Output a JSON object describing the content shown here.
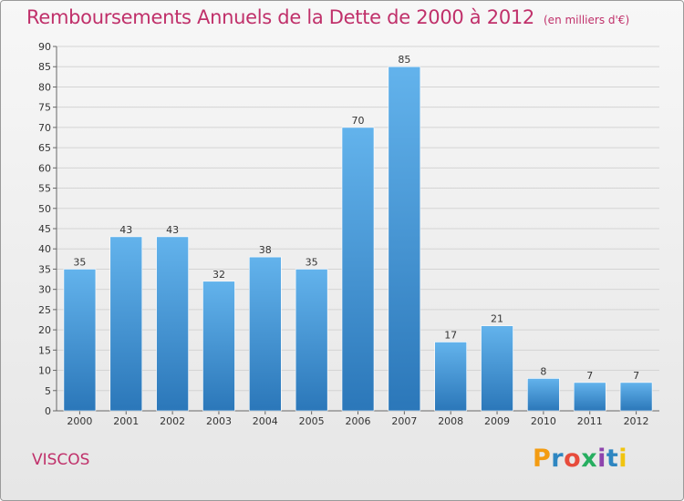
{
  "header": {
    "title": "Remboursements Annuels de la Dette de 2000 à 2012",
    "unit": "(en milliers d'€)"
  },
  "footer": {
    "place": "VISCOS",
    "brand": "Proxiti"
  },
  "colors": {
    "title": "#c0306a",
    "bar_top": "#63b3ec",
    "bar_bottom": "#2b77b9",
    "grid": "#d4d4d4",
    "brand_letters": [
      "#f39c12",
      "#2e86c1",
      "#e74c3c",
      "#27ae60",
      "#8e44ad",
      "#2e86c1",
      "#f1c40f"
    ]
  },
  "chart_data": {
    "type": "bar",
    "title": "Remboursements Annuels de la Dette de 2000 à 2012",
    "subtitle": "(en milliers d'€)",
    "xlabel": "",
    "ylabel": "",
    "categories": [
      "2000",
      "2001",
      "2002",
      "2003",
      "2004",
      "2005",
      "2006",
      "2007",
      "2008",
      "2009",
      "2010",
      "2011",
      "2012"
    ],
    "values": [
      35,
      43,
      43,
      32,
      38,
      35,
      70,
      85,
      17,
      21,
      8,
      7,
      7
    ],
    "ylim": [
      0,
      90
    ],
    "yticks": [
      0,
      5,
      10,
      15,
      20,
      25,
      30,
      35,
      40,
      45,
      50,
      55,
      60,
      65,
      70,
      75,
      80,
      85,
      90
    ],
    "grid": true,
    "data_labels": true
  }
}
